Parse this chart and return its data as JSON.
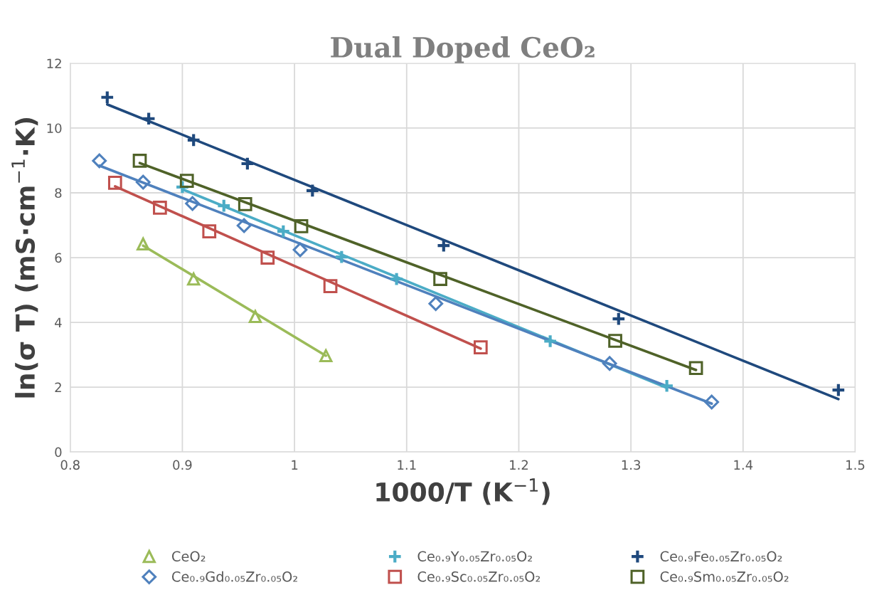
{
  "chart_data": {
    "type": "scatter",
    "title": "Dual Doped CeO₂",
    "xlabel": "1000/T (K$^{−1}$)",
    "ylabel": "ln(σ T) (mS·cm$^{−1}$·K)",
    "xlim": [
      0.8,
      1.5
    ],
    "xticks": [
      0.8,
      0.9,
      1,
      1.1,
      1.2,
      1.3,
      1.4,
      1.5
    ],
    "ylim": [
      0,
      12
    ],
    "yticks": [
      0,
      2,
      4,
      6,
      8,
      10,
      12
    ],
    "grid": true,
    "legend": "bottom",
    "series": [
      {
        "name": "CeO₂",
        "marker": "triangle",
        "color": "#9bbb59",
        "x": [
          0.865,
          0.91,
          0.965,
          1.028
        ],
        "values": [
          6.42,
          5.34,
          4.18,
          2.97
        ]
      },
      {
        "name": "Ce₀.₉Y₀.₀₅Zr₀.₀₅O₂",
        "marker": "cross",
        "color": "#4bacc6",
        "x": [
          0.9,
          0.937,
          0.99,
          1.042,
          1.091,
          1.228,
          1.332
        ],
        "values": [
          8.18,
          7.6,
          6.81,
          6.02,
          5.34,
          3.42,
          2.04
        ]
      },
      {
        "name": "Ce₀.₉Fe₀.₀₅Zr₀.₀₅O₂",
        "marker": "cross",
        "color": "#1f497d",
        "x": [
          0.833,
          0.87,
          0.91,
          0.958,
          1.016,
          1.133,
          1.289,
          1.485
        ],
        "values": [
          10.95,
          10.29,
          9.63,
          8.9,
          8.07,
          6.37,
          4.11,
          1.91
        ]
      },
      {
        "name": "Ce₀.₉Gd₀.₀₅Zr₀.₀₅O₂",
        "marker": "diamond",
        "color": "#4f81bd",
        "x": [
          0.826,
          0.865,
          0.909,
          0.955,
          1.005,
          1.126,
          1.281,
          1.372
        ],
        "values": [
          8.99,
          8.33,
          7.67,
          6.99,
          6.24,
          4.58,
          2.73,
          1.54
        ]
      },
      {
        "name": "Ce₀.₉Sc₀.₀₅Zr₀.₀₅O₂",
        "marker": "square",
        "color": "#c0504d",
        "x": [
          0.84,
          0.88,
          0.924,
          0.976,
          1.032,
          1.166
        ],
        "values": [
          8.31,
          7.54,
          6.81,
          6.0,
          5.12,
          3.23
        ]
      },
      {
        "name": "Ce₀.₉Sm₀.₀₅Zr₀.₀₅O₂",
        "marker": "square",
        "color": "#4f6228",
        "x": [
          0.862,
          0.904,
          0.956,
          1.006,
          1.13,
          1.286,
          1.358
        ],
        "values": [
          8.99,
          8.37,
          7.65,
          6.97,
          5.34,
          3.43,
          2.59
        ]
      },
      {
        "type": "line",
        "color": "#9bbb59",
        "x": [
          0.865,
          1.028
        ],
        "values": [
          6.37,
          2.97
        ]
      },
      {
        "type": "line",
        "color": "#4bacc6",
        "x": [
          0.9,
          1.332
        ],
        "values": [
          8.11,
          1.98
        ]
      },
      {
        "type": "line",
        "color": "#1f497d",
        "x": [
          0.833,
          1.485
        ],
        "values": [
          10.73,
          1.63
        ]
      },
      {
        "type": "line",
        "color": "#4f81bd",
        "x": [
          0.826,
          1.372
        ],
        "values": [
          8.84,
          1.49
        ]
      },
      {
        "type": "line",
        "color": "#c0504d",
        "x": [
          0.84,
          1.166
        ],
        "values": [
          8.2,
          3.19
        ]
      },
      {
        "type": "line",
        "color": "#4f6228",
        "x": [
          0.862,
          1.358
        ],
        "values": [
          8.92,
          2.53
        ]
      }
    ]
  }
}
